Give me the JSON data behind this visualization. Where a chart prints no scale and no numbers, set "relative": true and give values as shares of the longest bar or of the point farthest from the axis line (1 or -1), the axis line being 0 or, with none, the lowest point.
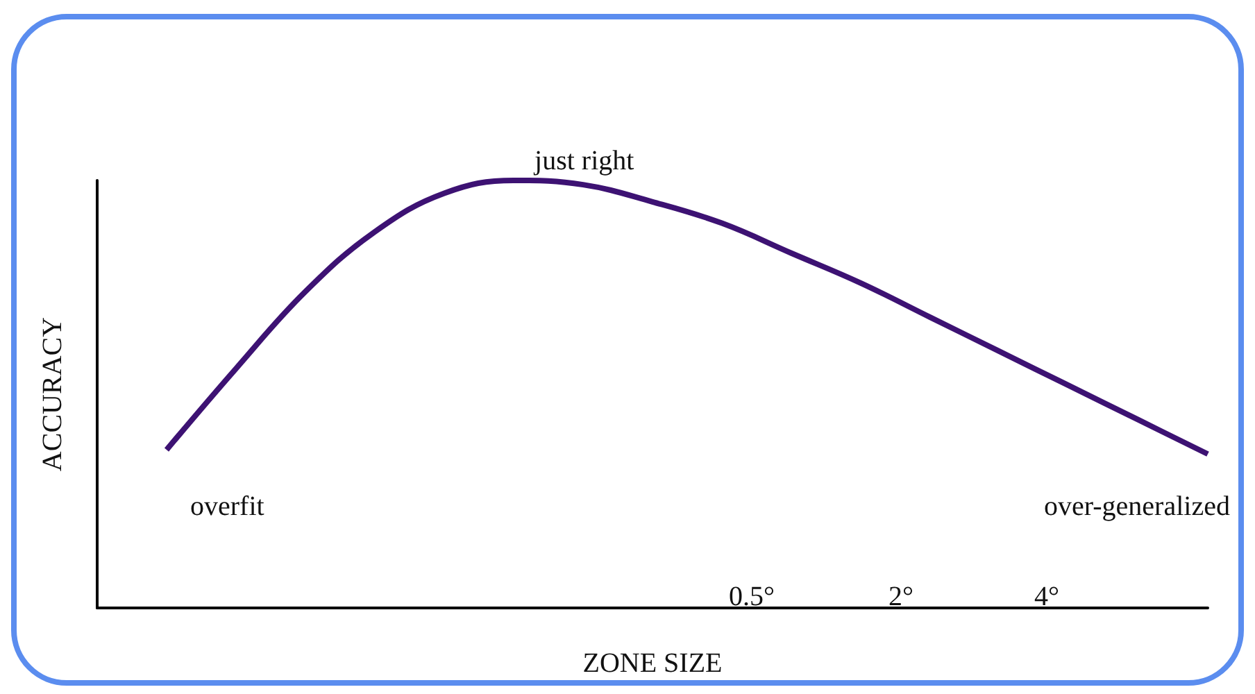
{
  "chart_data": {
    "type": "line",
    "relative": true,
    "xlabel": "ZONE SIZE",
    "ylabel": "ACCURACY",
    "color": "#3d1273",
    "grid": false,
    "marker": "none",
    "line_style": "solid",
    "categories": [
      null,
      null,
      null,
      null,
      null,
      null,
      null,
      null,
      null,
      null,
      null,
      null,
      null,
      null,
      null,
      null,
      null
    ],
    "values": [
      null,
      0.37,
      0.56,
      0.74,
      0.88,
      0.97,
      1.0,
      0.99,
      0.95,
      0.9,
      0.83,
      0.76,
      0.68,
      0.6,
      0.52,
      0.44,
      0.36
    ],
    "annotations": [
      "just right",
      "overfit",
      "over-generalized",
      "0.5°",
      "2°",
      "4°"
    ]
  }
}
